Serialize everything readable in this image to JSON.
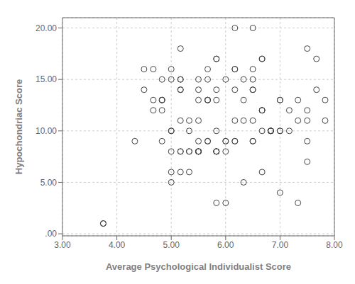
{
  "chart_data": {
    "type": "scatter",
    "xlabel": "Average Psychological Individualist Score",
    "ylabel": "Hypochondriac Score",
    "x": [
      3.75,
      4.33,
      4.67,
      4.83,
      5.0,
      4.5,
      4.67,
      5.0,
      5.17,
      5.17,
      4.5,
      4.83,
      4.83,
      5.0,
      5.17,
      5.5,
      5.67,
      5.67,
      5.83,
      6.17,
      4.67,
      4.83,
      4.83,
      5.17,
      5.33,
      5.33,
      5.5,
      5.67,
      5.83,
      6.33,
      6.5,
      6.5,
      6.5,
      7.67,
      4.83,
      5.0,
      5.17,
      5.17,
      5.33,
      5.33,
      5.5,
      5.67,
      5.67,
      5.83,
      6.0,
      6.17,
      6.17,
      6.33,
      6.5,
      6.5,
      6.67,
      6.67,
      7.5,
      7.67,
      7.83,
      5.0,
      5.17,
      5.5,
      5.5,
      5.5,
      5.67,
      5.67,
      5.83,
      5.83,
      5.83,
      5.83,
      6.0,
      6.17,
      6.33,
      6.5,
      6.5,
      6.67,
      6.67,
      6.67,
      6.83,
      7.0,
      7.0,
      7.17,
      7.33,
      7.5,
      5.0,
      5.17,
      5.17,
      5.5,
      5.5,
      5.5,
      5.83,
      6.0,
      6.0,
      6.17,
      6.33,
      6.67,
      6.83,
      6.83,
      6.83,
      6.83,
      6.83,
      7.0,
      7.17,
      7.33,
      7.5,
      7.5,
      7.83,
      5.0,
      5.33,
      5.5,
      5.83,
      6.0,
      6.17,
      6.67,
      7.0,
      7.33,
      7.5,
      5.83,
      6.17,
      6.5,
      7.0,
      3.75
    ],
    "values": [
      1.0,
      9.0,
      13.0,
      15.0,
      10.0,
      16.0,
      16.0,
      16.0,
      15.0,
      15.0,
      14.0,
      13.0,
      13.0,
      15.0,
      18.0,
      14.0,
      16.0,
      15.0,
      17.0,
      16.0,
      12.0,
      12.0,
      13.0,
      11.0,
      11.0,
      10.0,
      15.0,
      13.0,
      17.0,
      15.0,
      16.0,
      14.0,
      14.0,
      14.0,
      9.0,
      10.0,
      14.0,
      14.0,
      8.0,
      8.0,
      11.0,
      13.0,
      13.0,
      14.0,
      8.0,
      14.0,
      9.0,
      13.0,
      15.0,
      20.0,
      17.0,
      17.0,
      18.0,
      17.0,
      13.0,
      6.0,
      6.0,
      9.0,
      8.0,
      8.0,
      9.0,
      9.0,
      8.0,
      8.0,
      8.0,
      10.0,
      15.0,
      11.0,
      5.0,
      9.0,
      9.0,
      12.0,
      12.0,
      10.0,
      10.0,
      10.0,
      10.0,
      10.0,
      11.0,
      7.0,
      8.0,
      8.0,
      8.0,
      8.0,
      8.0,
      8.0,
      13.0,
      9.0,
      9.0,
      20.0,
      11.0,
      12.0,
      10.0,
      10.0,
      10.0,
      10.0,
      10.0,
      13.0,
      12.0,
      13.0,
      11.0,
      12.0,
      11.0,
      5.0,
      6.0,
      13.0,
      8.0,
      3.0,
      16.0,
      6.0,
      4.0,
      3.0,
      9.0,
      3.0,
      9.0,
      11.0,
      13.0,
      1.0
    ],
    "xlim": [
      3.0,
      8.0
    ],
    "ylim": [
      -0.2,
      21.0
    ],
    "xticks": [
      {
        "value": 3.0,
        "label": "3.00"
      },
      {
        "value": 4.0,
        "label": "4.00"
      },
      {
        "value": 5.0,
        "label": "5.00"
      },
      {
        "value": 6.0,
        "label": "6.00"
      },
      {
        "value": 7.0,
        "label": "7.00"
      },
      {
        "value": 8.0,
        "label": "8.00"
      }
    ],
    "yticks": [
      {
        "value": 0.0,
        "label": ".00"
      },
      {
        "value": 5.0,
        "label": "5.00"
      },
      {
        "value": 10.0,
        "label": "10.00"
      },
      {
        "value": 15.0,
        "label": "15.00"
      },
      {
        "value": 20.0,
        "label": "20.00"
      }
    ],
    "grid": true,
    "color": "#444444",
    "marker": "circle"
  }
}
